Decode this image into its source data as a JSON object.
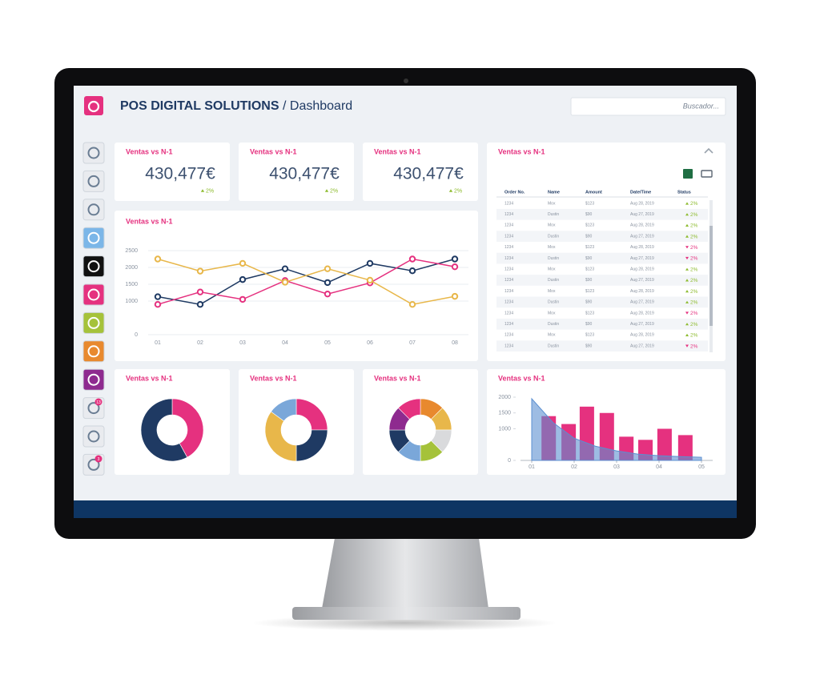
{
  "header": {
    "title": "POS DIGITAL SOLUTIONS",
    "separator": "/",
    "subtitle": "Dashboard",
    "search_placeholder": "Buscador..."
  },
  "sidebar": {
    "badges": [
      "13",
      "3"
    ]
  },
  "kpis": [
    {
      "title": "Ventas vs N-1",
      "value": "430,477€",
      "change": "2%",
      "trend": "up"
    },
    {
      "title": "Ventas vs N-1",
      "value": "430,477€",
      "change": "2%",
      "trend": "up"
    },
    {
      "title": "Ventas vs N-1",
      "value": "430,477€",
      "change": "2%",
      "trend": "up"
    }
  ],
  "line_chart": {
    "type": "line",
    "title": "Ventas vs N-1",
    "categories": [
      "01",
      "02",
      "03",
      "04",
      "05",
      "06",
      "07",
      "08"
    ],
    "ylim": [
      0,
      2500
    ],
    "yticks": [
      0,
      1000,
      1500,
      2000,
      2500
    ],
    "grid": true,
    "series": [
      {
        "color": "#1f3a63",
        "values": [
          1130,
          900,
          1640,
          1960,
          1550,
          2120,
          1900,
          2250
        ]
      },
      {
        "color": "#e5317f",
        "values": [
          900,
          1270,
          1050,
          1610,
          1210,
          1540,
          2250,
          2020
        ]
      },
      {
        "color": "#e8b74a",
        "values": [
          2250,
          1890,
          2120,
          1560,
          1960,
          1620,
          900,
          1140
        ]
      }
    ]
  },
  "table": {
    "title": "Ventas vs N-1",
    "columns": [
      "Order No.",
      "Name",
      "Amount",
      "Date/Time",
      "Status"
    ],
    "rows": [
      {
        "order": "1234",
        "name": "Mox",
        "amount": "$123",
        "date": "Aug 28, 2019",
        "status": "2%",
        "trend": "up"
      },
      {
        "order": "1234",
        "name": "Dustin",
        "amount": "$90",
        "date": "Aug 27, 2019",
        "status": "2%",
        "trend": "up"
      },
      {
        "order": "1234",
        "name": "Mox",
        "amount": "$123",
        "date": "Aug 28, 2019",
        "status": "2%",
        "trend": "up"
      },
      {
        "order": "1234",
        "name": "Dustin",
        "amount": "$90",
        "date": "Aug 27, 2019",
        "status": "2%",
        "trend": "up"
      },
      {
        "order": "1234",
        "name": "Mox",
        "amount": "$123",
        "date": "Aug 28, 2019",
        "status": "2%",
        "trend": "down"
      },
      {
        "order": "1234",
        "name": "Dustin",
        "amount": "$90",
        "date": "Aug 27, 2019",
        "status": "2%",
        "trend": "down"
      },
      {
        "order": "1234",
        "name": "Mox",
        "amount": "$123",
        "date": "Aug 28, 2019",
        "status": "2%",
        "trend": "up"
      },
      {
        "order": "1234",
        "name": "Dustin",
        "amount": "$90",
        "date": "Aug 27, 2019",
        "status": "2%",
        "trend": "up"
      },
      {
        "order": "1234",
        "name": "Mox",
        "amount": "$123",
        "date": "Aug 28, 2019",
        "status": "2%",
        "trend": "up"
      },
      {
        "order": "1234",
        "name": "Dustin",
        "amount": "$90",
        "date": "Aug 27, 2019",
        "status": "2%",
        "trend": "up"
      },
      {
        "order": "1234",
        "name": "Mox",
        "amount": "$123",
        "date": "Aug 28, 2019",
        "status": "2%",
        "trend": "down"
      },
      {
        "order": "1234",
        "name": "Dustin",
        "amount": "$90",
        "date": "Aug 27, 2019",
        "status": "2%",
        "trend": "up"
      },
      {
        "order": "1234",
        "name": "Mox",
        "amount": "$123",
        "date": "Aug 28, 2019",
        "status": "2%",
        "trend": "up"
      },
      {
        "order": "1234",
        "name": "Dustin",
        "amount": "$90",
        "date": "Aug 27, 2019",
        "status": "2%",
        "trend": "down"
      }
    ]
  },
  "donuts": [
    {
      "type": "pie",
      "title": "Ventas vs N-1",
      "values": [
        42,
        58
      ],
      "colors": [
        "#e5317f",
        "#1f3a63"
      ]
    },
    {
      "type": "pie",
      "title": "Ventas vs N-1",
      "values": [
        25,
        25,
        35,
        15
      ],
      "colors": [
        "#e5317f",
        "#1f3a63",
        "#e8b74a",
        "#7aa7d9"
      ]
    },
    {
      "type": "pie",
      "title": "Ventas vs N-1",
      "values": [
        12.5,
        12.5,
        12.5,
        12.5,
        12.5,
        12.5,
        12.5,
        12.5
      ],
      "colors": [
        "#e8892e",
        "#e8b74a",
        "#d9dadc",
        "#a5c23a",
        "#7aa7d9",
        "#1f3a63",
        "#8e2a8f",
        "#e5317f"
      ]
    }
  ],
  "combo_chart": {
    "type": "bar",
    "title": "Ventas vs N-1",
    "xlim": [
      1,
      5
    ],
    "xticks": [
      {
        "value": 1,
        "label": "01"
      },
      {
        "value": 2,
        "label": "02"
      },
      {
        "value": 3,
        "label": "03"
      },
      {
        "value": 4,
        "label": "04"
      },
      {
        "value": 5,
        "label": "05"
      }
    ],
    "ylim": [
      0,
      2000
    ],
    "yticks": [
      0,
      1000,
      1500,
      2000
    ],
    "bars": {
      "color": "#e5317f",
      "x": [
        1.4,
        1.87,
        2.3,
        2.77,
        3.23,
        3.68,
        4.13,
        4.62
      ],
      "values": [
        1400,
        1150,
        1700,
        1500,
        750,
        650,
        1000,
        800
      ]
    },
    "area": {
      "color": "#5b8fd0",
      "x": [
        1,
        1.5,
        2,
        2.5,
        3,
        3.5,
        4,
        4.5,
        5
      ],
      "values": [
        1950,
        1200,
        700,
        450,
        300,
        200,
        150,
        120,
        100
      ]
    }
  }
}
